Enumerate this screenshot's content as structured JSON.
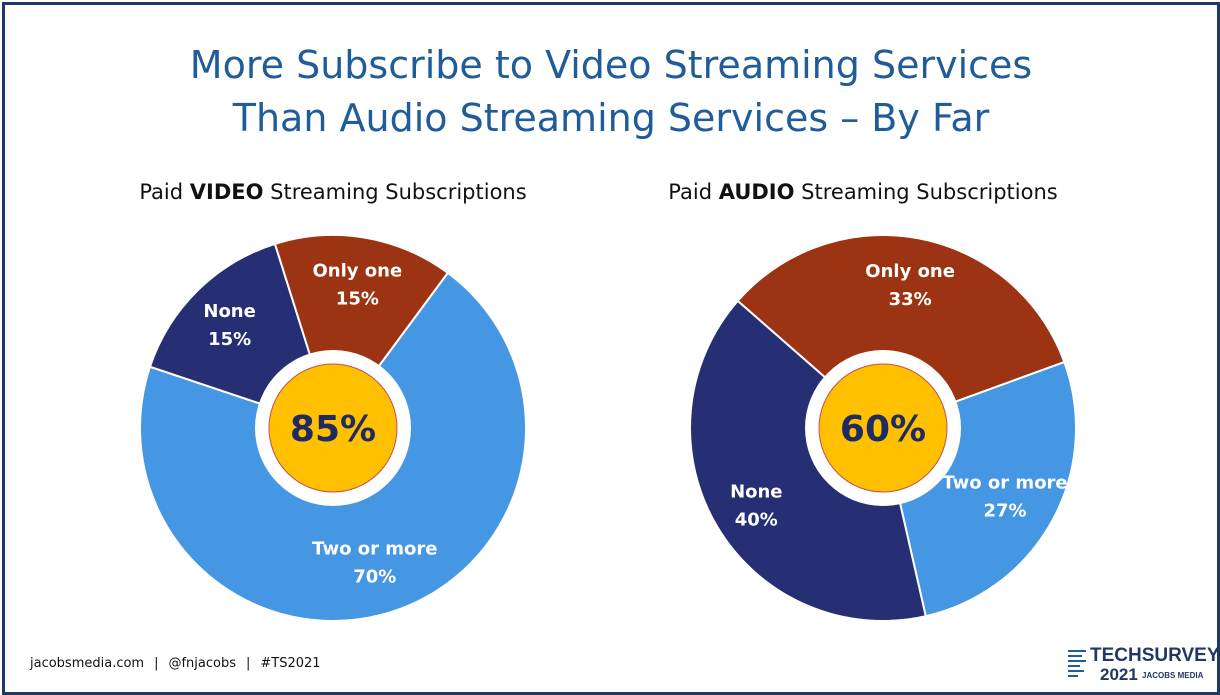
{
  "title": {
    "line1": "More Subscribe to Video Streaming Services",
    "line2": "Than Audio Streaming Services – By Far"
  },
  "colors": {
    "two_or_more": "#4597e3",
    "only_one": "#9c3313",
    "none": "#262e74",
    "center": "#ffc000",
    "title": "#1f5c99",
    "label_text": "#ffffff",
    "center_text": "#1f2a60"
  },
  "chart_data": [
    {
      "type": "pie",
      "title_pre": "Paid ",
      "title_bold": "VIDEO",
      "title_post": " Streaming Subscriptions",
      "center_label": "85%",
      "slices": [
        {
          "name": "Two or more",
          "value": 70,
          "label": "70%"
        },
        {
          "name": "None",
          "value": 15,
          "label": "15%"
        },
        {
          "name": "Only one",
          "value": 15,
          "label": "15%"
        }
      ]
    },
    {
      "type": "pie",
      "title_pre": "Paid ",
      "title_bold": "AUDIO",
      "title_post": " Streaming Subscriptions",
      "center_label": "60%",
      "slices": [
        {
          "name": "Two or more",
          "value": 27,
          "label": "27%"
        },
        {
          "name": "None",
          "value": 40,
          "label": "40%"
        },
        {
          "name": "Only one",
          "value": 33,
          "label": "33%"
        }
      ]
    }
  ],
  "footer": {
    "site": "jacobsmedia.com",
    "handle": "@fnjacobs",
    "hashtag": "#TS2021"
  },
  "logo": {
    "name": "TECHSURVEY",
    "year": "2021",
    "company": "JACOBS MEDIA"
  }
}
